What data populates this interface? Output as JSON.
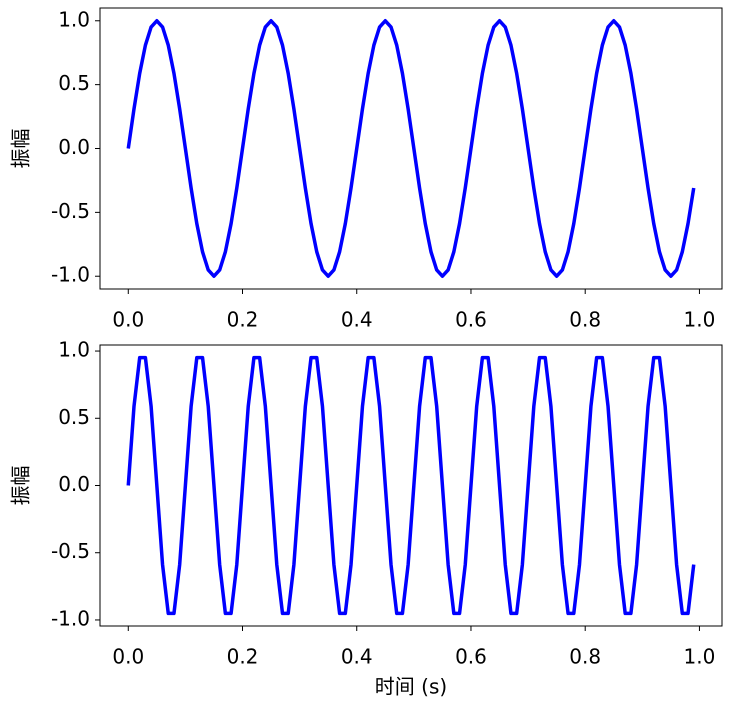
{
  "chart_data": [
    {
      "type": "line",
      "ylabel": "振幅",
      "color": "#0000ff",
      "x": [
        0,
        0.01,
        0.02,
        0.03,
        0.04,
        0.05,
        0.06,
        0.07,
        0.08,
        0.09,
        0.1,
        0.11,
        0.12,
        0.13,
        0.14,
        0.15,
        0.16,
        0.17,
        0.18,
        0.19,
        0.2,
        0.21,
        0.22,
        0.23,
        0.24,
        0.25,
        0.26,
        0.27,
        0.28,
        0.29,
        0.3,
        0.31,
        0.32,
        0.33,
        0.34,
        0.35,
        0.36,
        0.37,
        0.38,
        0.39,
        0.4,
        0.41,
        0.42,
        0.43,
        0.44,
        0.45,
        0.46,
        0.47,
        0.48,
        0.49,
        0.5,
        0.51,
        0.52,
        0.53,
        0.54,
        0.55,
        0.56,
        0.57,
        0.58,
        0.59,
        0.6,
        0.61,
        0.62,
        0.63,
        0.64,
        0.65,
        0.66,
        0.67,
        0.68,
        0.69,
        0.7,
        0.71,
        0.72,
        0.73,
        0.74,
        0.75,
        0.76,
        0.77,
        0.78,
        0.79,
        0.8,
        0.81,
        0.82,
        0.83,
        0.84,
        0.85,
        0.86,
        0.87,
        0.88,
        0.89,
        0.9,
        0.91,
        0.92,
        0.93,
        0.94,
        0.95,
        0.96,
        0.97,
        0.98,
        0.99
      ],
      "values": [
        0,
        0.309,
        0.588,
        0.809,
        0.951,
        1,
        0.951,
        0.809,
        0.588,
        0.309,
        0,
        -0.309,
        -0.588,
        -0.809,
        -0.951,
        -1,
        -0.951,
        -0.809,
        -0.588,
        -0.309,
        0,
        0.309,
        0.588,
        0.809,
        0.951,
        1,
        0.951,
        0.809,
        0.588,
        0.309,
        0,
        -0.309,
        -0.588,
        -0.809,
        -0.951,
        -1,
        -0.951,
        -0.809,
        -0.588,
        -0.309,
        0,
        0.309,
        0.588,
        0.809,
        0.951,
        1,
        0.951,
        0.809,
        0.588,
        0.309,
        0,
        -0.309,
        -0.588,
        -0.809,
        -0.951,
        -1,
        -0.951,
        -0.809,
        -0.588,
        -0.309,
        0,
        0.309,
        0.588,
        0.809,
        0.951,
        1,
        0.951,
        0.809,
        0.588,
        0.309,
        0,
        -0.309,
        -0.588,
        -0.809,
        -0.951,
        -1,
        -0.951,
        -0.809,
        -0.588,
        -0.309,
        0,
        0.309,
        0.588,
        0.809,
        0.951,
        1,
        0.951,
        0.809,
        0.588,
        0.309,
        0,
        -0.309,
        -0.588,
        -0.809,
        -0.951,
        -1,
        -0.951,
        -0.809,
        -0.588,
        -0.309
      ],
      "xlim": [
        -0.0495,
        1.0395
      ],
      "ylim": [
        -1.1,
        1.1
      ],
      "xticks": [
        {
          "value": 0,
          "label": "0.0"
        },
        {
          "value": 0.2,
          "label": "0.2"
        },
        {
          "value": 0.4,
          "label": "0.4"
        },
        {
          "value": 0.6,
          "label": "0.6"
        },
        {
          "value": 0.8,
          "label": "0.8"
        },
        {
          "value": 1,
          "label": "1.0"
        }
      ],
      "yticks": [
        {
          "value": -1,
          "label": "-1.0"
        },
        {
          "value": -0.5,
          "label": "-0.5"
        },
        {
          "value": 0,
          "label": "0.0"
        },
        {
          "value": 0.5,
          "label": "0.5"
        },
        {
          "value": 1,
          "label": "1.0"
        }
      ]
    },
    {
      "type": "line",
      "ylabel": "振幅",
      "xlabel": "时间 (s)",
      "color": "#0000ff",
      "x": [
        0,
        0.01,
        0.02,
        0.03,
        0.04,
        0.05,
        0.06,
        0.07,
        0.08,
        0.09,
        0.1,
        0.11,
        0.12,
        0.13,
        0.14,
        0.15,
        0.16,
        0.17,
        0.18,
        0.19,
        0.2,
        0.21,
        0.22,
        0.23,
        0.24,
        0.25,
        0.26,
        0.27,
        0.28,
        0.29,
        0.3,
        0.31,
        0.32,
        0.33,
        0.34,
        0.35,
        0.36,
        0.37,
        0.38,
        0.39,
        0.4,
        0.41,
        0.42,
        0.43,
        0.44,
        0.45,
        0.46,
        0.47,
        0.48,
        0.49,
        0.5,
        0.51,
        0.52,
        0.53,
        0.54,
        0.55,
        0.56,
        0.57,
        0.58,
        0.59,
        0.6,
        0.61,
        0.62,
        0.63,
        0.64,
        0.65,
        0.66,
        0.67,
        0.68,
        0.69,
        0.7,
        0.71,
        0.72,
        0.73,
        0.74,
        0.75,
        0.76,
        0.77,
        0.78,
        0.79,
        0.8,
        0.81,
        0.82,
        0.83,
        0.84,
        0.85,
        0.86,
        0.87,
        0.88,
        0.89,
        0.9,
        0.91,
        0.92,
        0.93,
        0.94,
        0.95,
        0.96,
        0.97,
        0.98,
        0.99
      ],
      "values": [
        0,
        0.588,
        0.951,
        0.951,
        0.588,
        0,
        -0.588,
        -0.951,
        -0.951,
        -0.588,
        0,
        0.588,
        0.951,
        0.951,
        0.588,
        0,
        -0.588,
        -0.951,
        -0.951,
        -0.588,
        0,
        0.588,
        0.951,
        0.951,
        0.588,
        0,
        -0.588,
        -0.951,
        -0.951,
        -0.588,
        0,
        0.588,
        0.951,
        0.951,
        0.588,
        0,
        -0.588,
        -0.951,
        -0.951,
        -0.588,
        0,
        0.588,
        0.951,
        0.951,
        0.588,
        0,
        -0.588,
        -0.951,
        -0.951,
        -0.588,
        0,
        0.588,
        0.951,
        0.951,
        0.588,
        0,
        -0.588,
        -0.951,
        -0.951,
        -0.588,
        0,
        0.588,
        0.951,
        0.951,
        0.588,
        0,
        -0.588,
        -0.951,
        -0.951,
        -0.588,
        0,
        0.588,
        0.951,
        0.951,
        0.588,
        0,
        -0.588,
        -0.951,
        -0.951,
        -0.588,
        0,
        0.588,
        0.951,
        0.951,
        0.588,
        0,
        -0.588,
        -0.951,
        -0.951,
        -0.588,
        0,
        0.588,
        0.951,
        0.951,
        0.588,
        0,
        -0.588,
        -0.951,
        -0.951,
        -0.588
      ],
      "xlim": [
        -0.0495,
        1.0395
      ],
      "ylim": [
        -1.045,
        1.045
      ],
      "xticks": [
        {
          "value": 0,
          "label": "0.0"
        },
        {
          "value": 0.2,
          "label": "0.2"
        },
        {
          "value": 0.4,
          "label": "0.4"
        },
        {
          "value": 0.6,
          "label": "0.6"
        },
        {
          "value": 0.8,
          "label": "0.8"
        },
        {
          "value": 1,
          "label": "1.0"
        }
      ],
      "yticks": [
        {
          "value": -1,
          "label": "-1.0"
        },
        {
          "value": -0.5,
          "label": "-0.5"
        },
        {
          "value": 0,
          "label": "0.0"
        },
        {
          "value": 0.5,
          "label": "0.5"
        },
        {
          "value": 1,
          "label": "1.0"
        }
      ]
    }
  ]
}
